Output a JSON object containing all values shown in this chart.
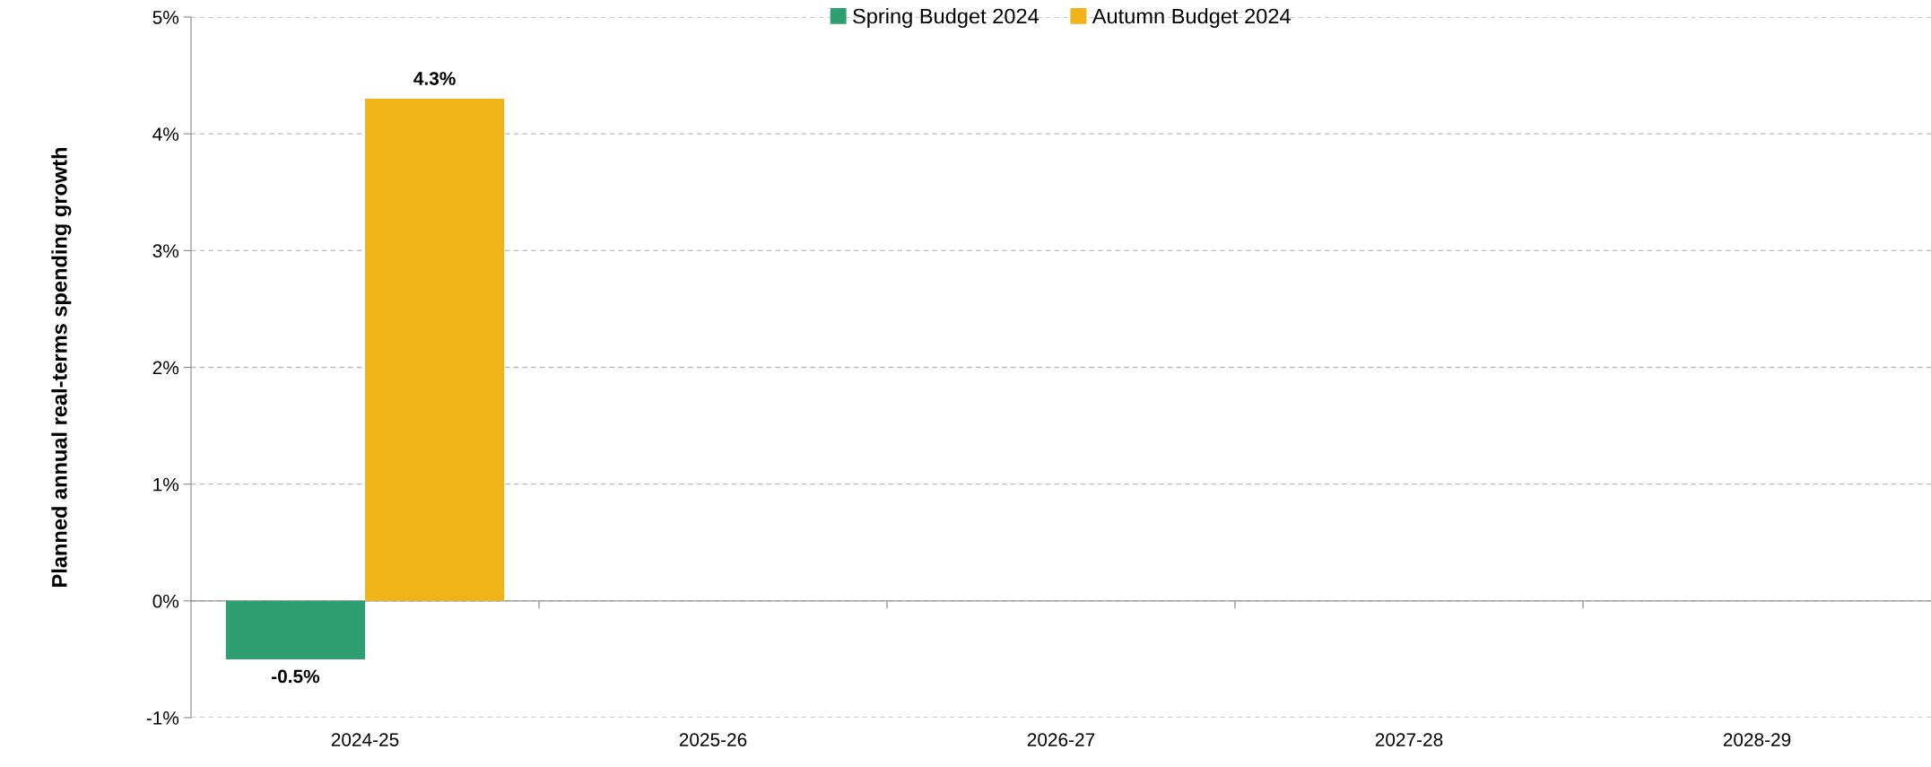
{
  "chart_data": {
    "type": "bar",
    "ylabel": "Planned annual real-terms spending growth",
    "categories": [
      "2024-25",
      "2025-26",
      "2026-27",
      "2027-28",
      "2028-29"
    ],
    "series": [
      {
        "name": "Spring Budget 2024",
        "color": "#2e9f73",
        "values": [
          -0.5,
          null,
          null,
          null,
          null
        ],
        "value_labels": [
          "-0.5%",
          null,
          null,
          null,
          null
        ]
      },
      {
        "name": "Autumn Budget 2024",
        "color": "#f0b418",
        "values": [
          4.3,
          null,
          null,
          null,
          null
        ],
        "value_labels": [
          "4.3%",
          null,
          null,
          null,
          null
        ]
      }
    ],
    "ylim": [
      -1,
      5
    ],
    "yticks": [
      {
        "value": -1,
        "label": "-1%"
      },
      {
        "value": 0,
        "label": "0%"
      },
      {
        "value": 1,
        "label": "1%"
      },
      {
        "value": 2,
        "label": "2%"
      },
      {
        "value": 3,
        "label": "3%"
      },
      {
        "value": 4,
        "label": "4%"
      },
      {
        "value": 5,
        "label": "5%"
      }
    ],
    "grid": "y",
    "legend": "top"
  }
}
